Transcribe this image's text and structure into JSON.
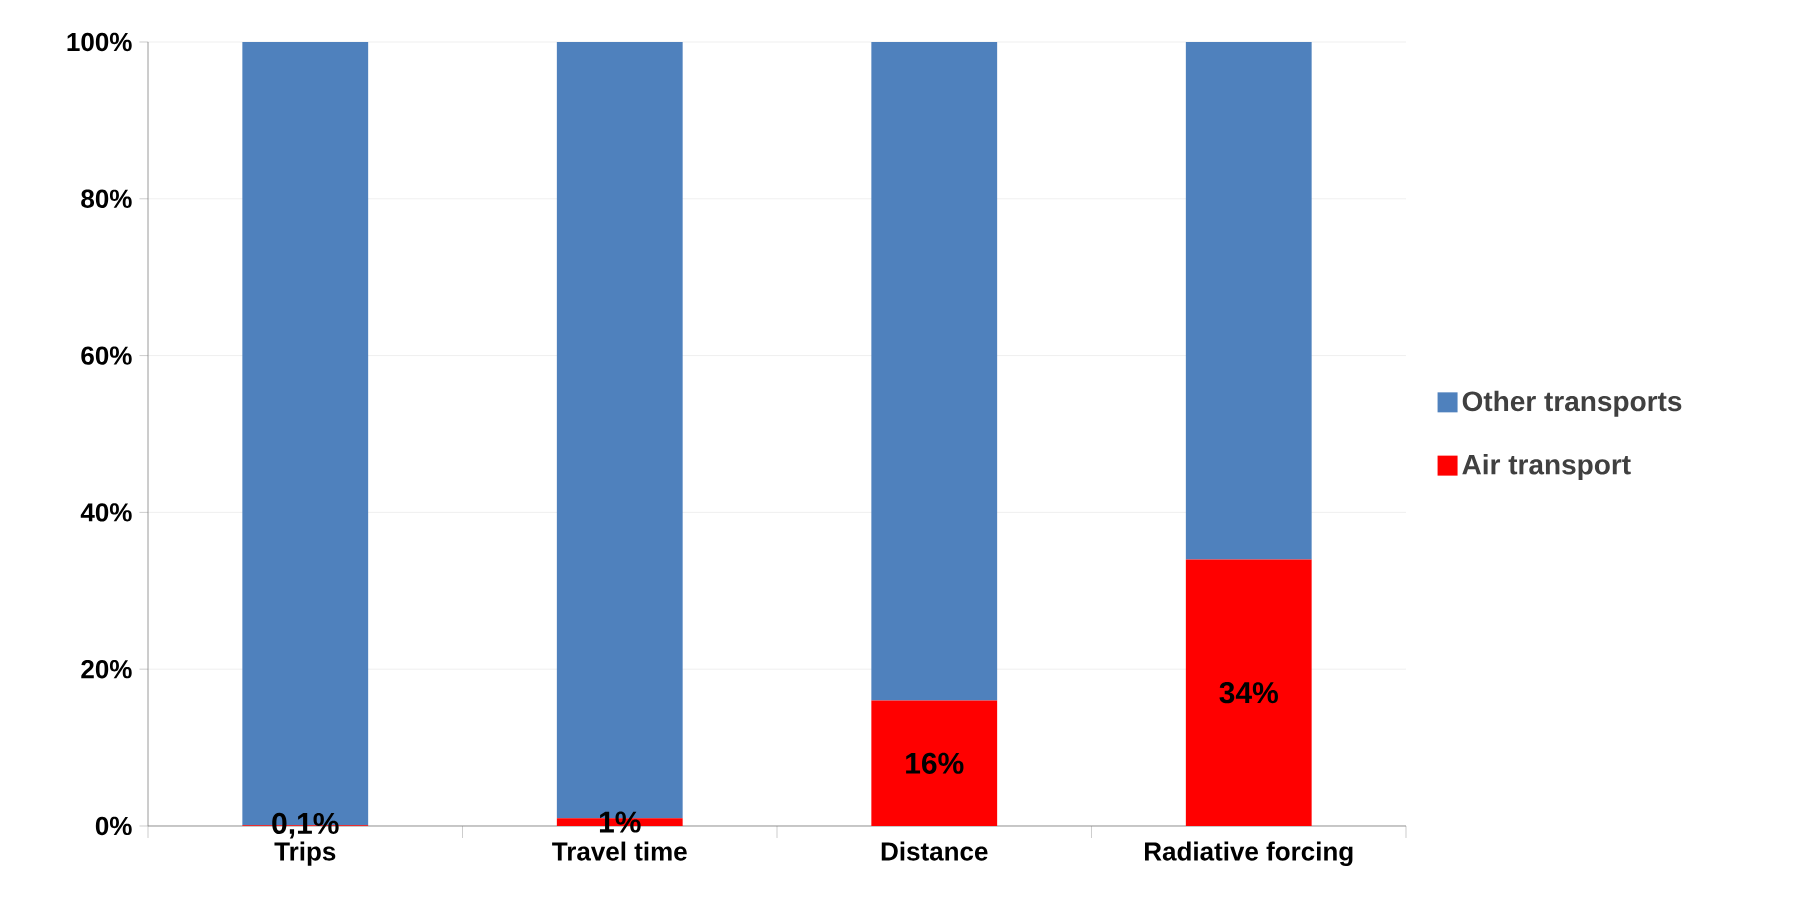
{
  "chart_data": {
    "type": "bar",
    "stacked": true,
    "categories": [
      "Trips",
      "Travel time",
      "Distance",
      "Radiative forcing"
    ],
    "series": [
      {
        "name": "Air transport",
        "color": "#ff0000",
        "values": [
          0.1,
          1,
          16,
          34
        ],
        "value_labels": [
          "0,1%",
          "1%",
          "16%",
          "34%"
        ]
      },
      {
        "name": "Other transports",
        "color": "#4f81bd",
        "values": [
          99.9,
          99,
          84,
          66
        ]
      }
    ],
    "ylim": [
      0,
      100
    ],
    "yticks": [
      {
        "value": 0,
        "label": "0%"
      },
      {
        "value": 20,
        "label": "20%"
      },
      {
        "value": 40,
        "label": "40%"
      },
      {
        "value": 60,
        "label": "60%"
      },
      {
        "value": 80,
        "label": "80%"
      },
      {
        "value": 100,
        "label": "100%"
      }
    ],
    "grid": "y",
    "legend": "right"
  }
}
